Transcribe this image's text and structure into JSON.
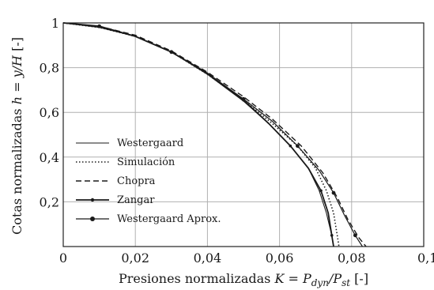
{
  "chart_data": {
    "type": "line",
    "xlabel": {
      "prefix": "Presiones normalizadas ",
      "symbol": "K",
      "middle": " = ",
      "P1": "P",
      "sub1": "dyn",
      "slash": "/",
      "P2": "P",
      "sub2": "st",
      "suffix": " [-]"
    },
    "ylabel": {
      "prefix": "Cotas normalizadas ",
      "symbol": "h",
      "middle": " = ",
      "frac": "y/H",
      "suffix": " [-]"
    },
    "xlim": [
      0,
      0.1
    ],
    "ylim": [
      0,
      1
    ],
    "xticks": [
      "0",
      "0,02",
      "0,04",
      "0,06",
      "0,08",
      "0,1"
    ],
    "yticks": [
      "0,2",
      "0,4",
      "0,6",
      "0,8",
      "1"
    ],
    "grid": true,
    "legend_position": "bottom-left",
    "series": [
      {
        "name": "Westergaard",
        "style": "solid",
        "color": "#1a1a1a",
        "points": [
          [
            0,
            1
          ],
          [
            0.01,
            0.98
          ],
          [
            0.02,
            0.94
          ],
          [
            0.03,
            0.87
          ],
          [
            0.04,
            0.77
          ],
          [
            0.05,
            0.65
          ],
          [
            0.057,
            0.55
          ],
          [
            0.063,
            0.45
          ],
          [
            0.068,
            0.35
          ],
          [
            0.071,
            0.25
          ],
          [
            0.073,
            0.15
          ],
          [
            0.0745,
            0.05
          ],
          [
            0.075,
            0
          ]
        ]
      },
      {
        "name": "Simulación",
        "style": "dotted",
        "color": "#1a1a1a",
        "points": [
          [
            0,
            1
          ],
          [
            0.01,
            0.98
          ],
          [
            0.02,
            0.94
          ],
          [
            0.03,
            0.87
          ],
          [
            0.04,
            0.77
          ],
          [
            0.05,
            0.655
          ],
          [
            0.058,
            0.55
          ],
          [
            0.065,
            0.45
          ],
          [
            0.07,
            0.35
          ],
          [
            0.073,
            0.25
          ],
          [
            0.075,
            0.15
          ],
          [
            0.076,
            0.05
          ],
          [
            0.0765,
            0
          ]
        ]
      },
      {
        "name": "Chopra",
        "style": "dashed",
        "color": "#1a1a1a",
        "points": [
          [
            0,
            1
          ],
          [
            0.01,
            0.985
          ],
          [
            0.02,
            0.945
          ],
          [
            0.03,
            0.875
          ],
          [
            0.04,
            0.78
          ],
          [
            0.05,
            0.67
          ],
          [
            0.058,
            0.57
          ],
          [
            0.066,
            0.45
          ],
          [
            0.072,
            0.33
          ],
          [
            0.076,
            0.22
          ],
          [
            0.079,
            0.12
          ],
          [
            0.082,
            0.04
          ],
          [
            0.084,
            0
          ]
        ]
      },
      {
        "name": "Zangar",
        "style": "solid-thick",
        "color": "#1a1a1a",
        "points": [
          [
            0,
            1
          ],
          [
            0.01,
            0.985
          ],
          [
            0.02,
            0.94
          ],
          [
            0.03,
            0.87
          ],
          [
            0.04,
            0.775
          ],
          [
            0.05,
            0.655
          ],
          [
            0.057,
            0.55
          ],
          [
            0.063,
            0.45
          ],
          [
            0.068,
            0.35
          ],
          [
            0.0715,
            0.25
          ],
          [
            0.0735,
            0.15
          ],
          [
            0.0745,
            0.05
          ],
          [
            0.075,
            0
          ]
        ]
      },
      {
        "name": "Westergaard Aprox.",
        "style": "solid-marker",
        "color": "#1a1a1a",
        "points": [
          [
            0,
            1
          ],
          [
            0.01,
            0.985
          ],
          [
            0.02,
            0.94
          ],
          [
            0.03,
            0.87
          ],
          [
            0.04,
            0.775
          ],
          [
            0.05,
            0.66
          ],
          [
            0.058,
            0.56
          ],
          [
            0.065,
            0.45
          ],
          [
            0.071,
            0.34
          ],
          [
            0.075,
            0.24
          ],
          [
            0.078,
            0.14
          ],
          [
            0.081,
            0.05
          ],
          [
            0.083,
            0
          ]
        ]
      }
    ]
  }
}
